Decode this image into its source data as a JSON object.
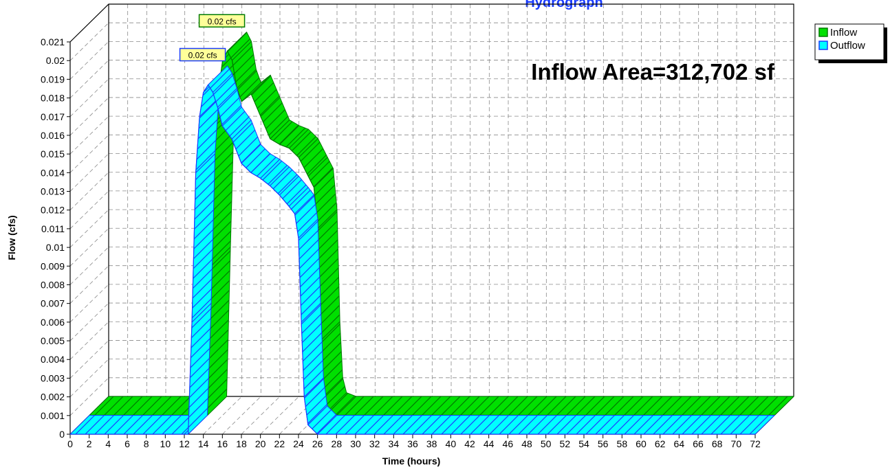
{
  "chart_data": {
    "type": "area3d",
    "title": "Hydrograph",
    "xlabel": "Time  (hours)",
    "ylabel": "Flow  (cfs)",
    "annotation": "Inflow Area=312,702 sf",
    "x": [
      0,
      12,
      12.4,
      12.8,
      13.2,
      13.6,
      14,
      14.5,
      15,
      15.5,
      16,
      17,
      18,
      19,
      20,
      21,
      22,
      23,
      23.6,
      24,
      24.3,
      24.6,
      25,
      26,
      72
    ],
    "series": [
      {
        "name": "Inflow",
        "color": "#00e000",
        "edge": "#007a00",
        "peak_label": "0.02 cfs",
        "values": [
          0,
          0,
          0,
          0.008,
          0.0155,
          0.0175,
          0.019,
          0.0195,
          0.019,
          0.0175,
          0.0168,
          0.0172,
          0.016,
          0.0148,
          0.0145,
          0.0143,
          0.0138,
          0.0128,
          0.0122,
          0.01,
          0.004,
          0.001,
          0.0002,
          0,
          0
        ]
      },
      {
        "name": "Outflow",
        "color": "#00ffff",
        "edge": "#1a3cff",
        "peak_label": "0.02 cfs",
        "values": [
          0,
          0,
          0,
          0.006,
          0.014,
          0.017,
          0.0183,
          0.0187,
          0.0183,
          0.0175,
          0.0165,
          0.0158,
          0.0145,
          0.014,
          0.0137,
          0.0133,
          0.0128,
          0.0122,
          0.0118,
          0.0105,
          0.006,
          0.002,
          0.0005,
          0,
          0
        ]
      }
    ],
    "xlim": [
      0,
      72
    ],
    "xticks": [
      0,
      2,
      4,
      6,
      8,
      10,
      12,
      14,
      16,
      18,
      20,
      22,
      24,
      26,
      28,
      30,
      32,
      34,
      36,
      38,
      40,
      42,
      44,
      46,
      48,
      50,
      52,
      54,
      56,
      58,
      60,
      62,
      64,
      66,
      68,
      70,
      72
    ],
    "ylim": [
      0,
      0.021
    ],
    "yticks": [
      0,
      0.001,
      0.002,
      0.003,
      0.004,
      0.005,
      0.006,
      0.007,
      0.008,
      0.009,
      0.01,
      0.011,
      0.012,
      0.013,
      0.014,
      0.015,
      0.016,
      0.017,
      0.018,
      0.019,
      0.02,
      0.021
    ],
    "grid": true,
    "legend": "top-right"
  }
}
